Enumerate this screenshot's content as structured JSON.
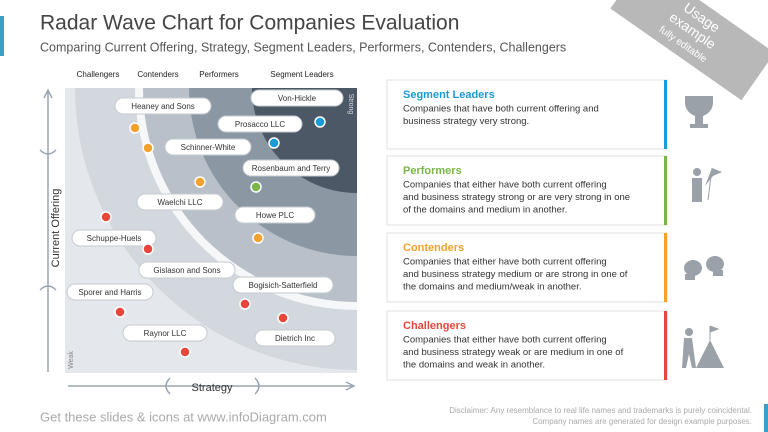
{
  "header": {
    "title": "Radar Wave Chart for Companies Evaluation",
    "subtitle": "Comparing Current Offering, Strategy, Segment Leaders, Performers, Contenders, Challengers"
  },
  "badge": {
    "line1": "Usage",
    "line2": "example",
    "line3": "fully editable"
  },
  "segments_top": [
    "Challengers",
    "Contenders",
    "Performers",
    "Segment Leaders"
  ],
  "axes": {
    "y": "Current Offering",
    "x": "Strategy",
    "strong": "Strong",
    "weak": "Weak"
  },
  "companies": [
    "Heaney and Sons",
    "Von-Hickle",
    "Prosacco LLC",
    "Schinner-White",
    "Rosenbaum and Terry",
    "Waelchi LLC",
    "Howe PLC",
    "Schuppe-Huels",
    "Gislason and Sons",
    "Bogisich-Satterfield",
    "Sporer and Harris",
    "Raynor LLC",
    "Dietrich Inc"
  ],
  "legend": [
    {
      "title": "Segment Leaders",
      "text": [
        "Companies that have both current offering and",
        "business strategy very strong."
      ]
    },
    {
      "title": "Performers",
      "text": [
        "Companies that either  have both current offering",
        "and business strategy strong or are very strong in one",
        "of the domains and medium in another."
      ]
    },
    {
      "title": "Contenders",
      "text": [
        "Companies that either have both current offering",
        "and business strategy medium or are strong in one of",
        "the domains and medium/weak in another."
      ]
    },
    {
      "title": "Challengers",
      "text": [
        "Companies that either have both current offering",
        "and business strategy weak or are medium in one of",
        "the domains and weak in another."
      ]
    }
  ],
  "footer": {
    "brand": "Get these slides & icons at www.infoDiagram.com",
    "disclaimer": [
      "Disclaimer: Any resemblance to real life names and trademarks is purely coincidental.",
      "Company names are generated for design example purposes."
    ]
  }
}
